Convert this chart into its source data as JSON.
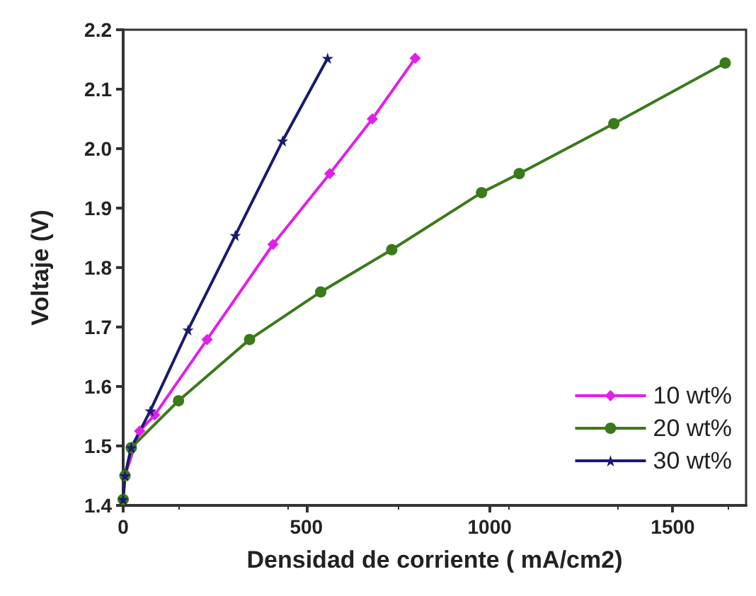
{
  "chart_data": {
    "type": "line",
    "xlabel": "Densidad de corriente ( mA/cm2)",
    "ylabel": "Voltaje (V)",
    "xlim": [
      0,
      1700
    ],
    "xticks": [
      0,
      500,
      1000,
      1500
    ],
    "ylim": [
      1.4,
      2.2
    ],
    "yticks": [
      1.4,
      1.5,
      1.6,
      1.7,
      1.8,
      1.9,
      {
        "value": 2,
        "label": "2.0"
      },
      2.1,
      2.2
    ],
    "grid": false,
    "legend": "bottom right",
    "series": [
      {
        "name": "10 wt%",
        "color": "#e020e8",
        "marker": "diamond",
        "x": [
          5,
          45,
          86,
          229,
          409,
          564,
          680,
          797
        ],
        "values": [
          1.45,
          1.525,
          1.552,
          1.679,
          1.839,
          1.958,
          2.05,
          2.152
        ]
      },
      {
        "name": "20 wt%",
        "color": "#3a7a1a",
        "marker": "circle",
        "x": [
          0,
          5,
          22,
          151,
          345,
          539,
          733,
          978,
          1081,
          1339,
          1643
        ],
        "values": [
          1.41,
          1.45,
          1.497,
          1.576,
          1.679,
          1.759,
          1.83,
          1.926,
          1.958,
          2.042,
          2.144
        ]
      },
      {
        "name": "30 wt%",
        "color": "#1a1a6e",
        "marker": "star",
        "x": [
          0,
          5,
          22,
          74,
          177,
          306,
          435,
          558
        ],
        "values": [
          1.41,
          1.45,
          1.497,
          1.559,
          1.695,
          1.854,
          2.013,
          2.152
        ]
      }
    ]
  }
}
